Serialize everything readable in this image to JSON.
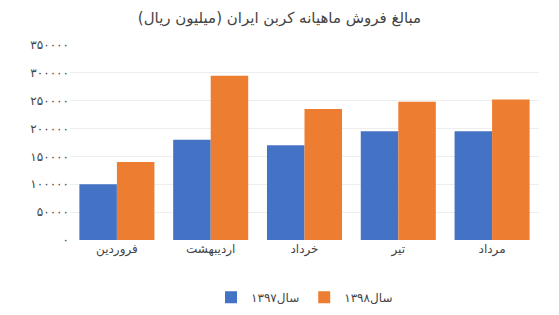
{
  "chart_data": {
    "type": "bar",
    "title": "مبالغ فروش ماهیانه کربن ایران (میلیون ریال)",
    "categories": [
      "فروردین",
      "اردیبهشت",
      "خرداد",
      "تیر",
      "مرداد"
    ],
    "series": [
      {
        "name": "سال۱۳۹۷",
        "color": "#4472C4",
        "values": [
          100000,
          180000,
          170000,
          195000,
          195000
        ]
      },
      {
        "name": "سال۱۳۹۸",
        "color": "#ED7D31",
        "values": [
          140000,
          295000,
          235000,
          248000,
          252000
        ]
      }
    ],
    "ylim": [
      0,
      350000
    ],
    "yticks": [
      {
        "value": 0,
        "label": "۰"
      },
      {
        "value": 50000,
        "label": "۵۰۰۰۰"
      },
      {
        "value": 100000,
        "label": "۱۰۰۰۰۰"
      },
      {
        "value": 150000,
        "label": "۱۵۰۰۰۰"
      },
      {
        "value": 200000,
        "label": "۲۰۰۰۰۰"
      },
      {
        "value": 250000,
        "label": "۲۵۰۰۰۰"
      },
      {
        "value": 300000,
        "label": "۳۰۰۰۰۰"
      },
      {
        "value": 350000,
        "label": "۳۵۰۰۰۰"
      }
    ],
    "grid": true,
    "legend": "bottom"
  }
}
